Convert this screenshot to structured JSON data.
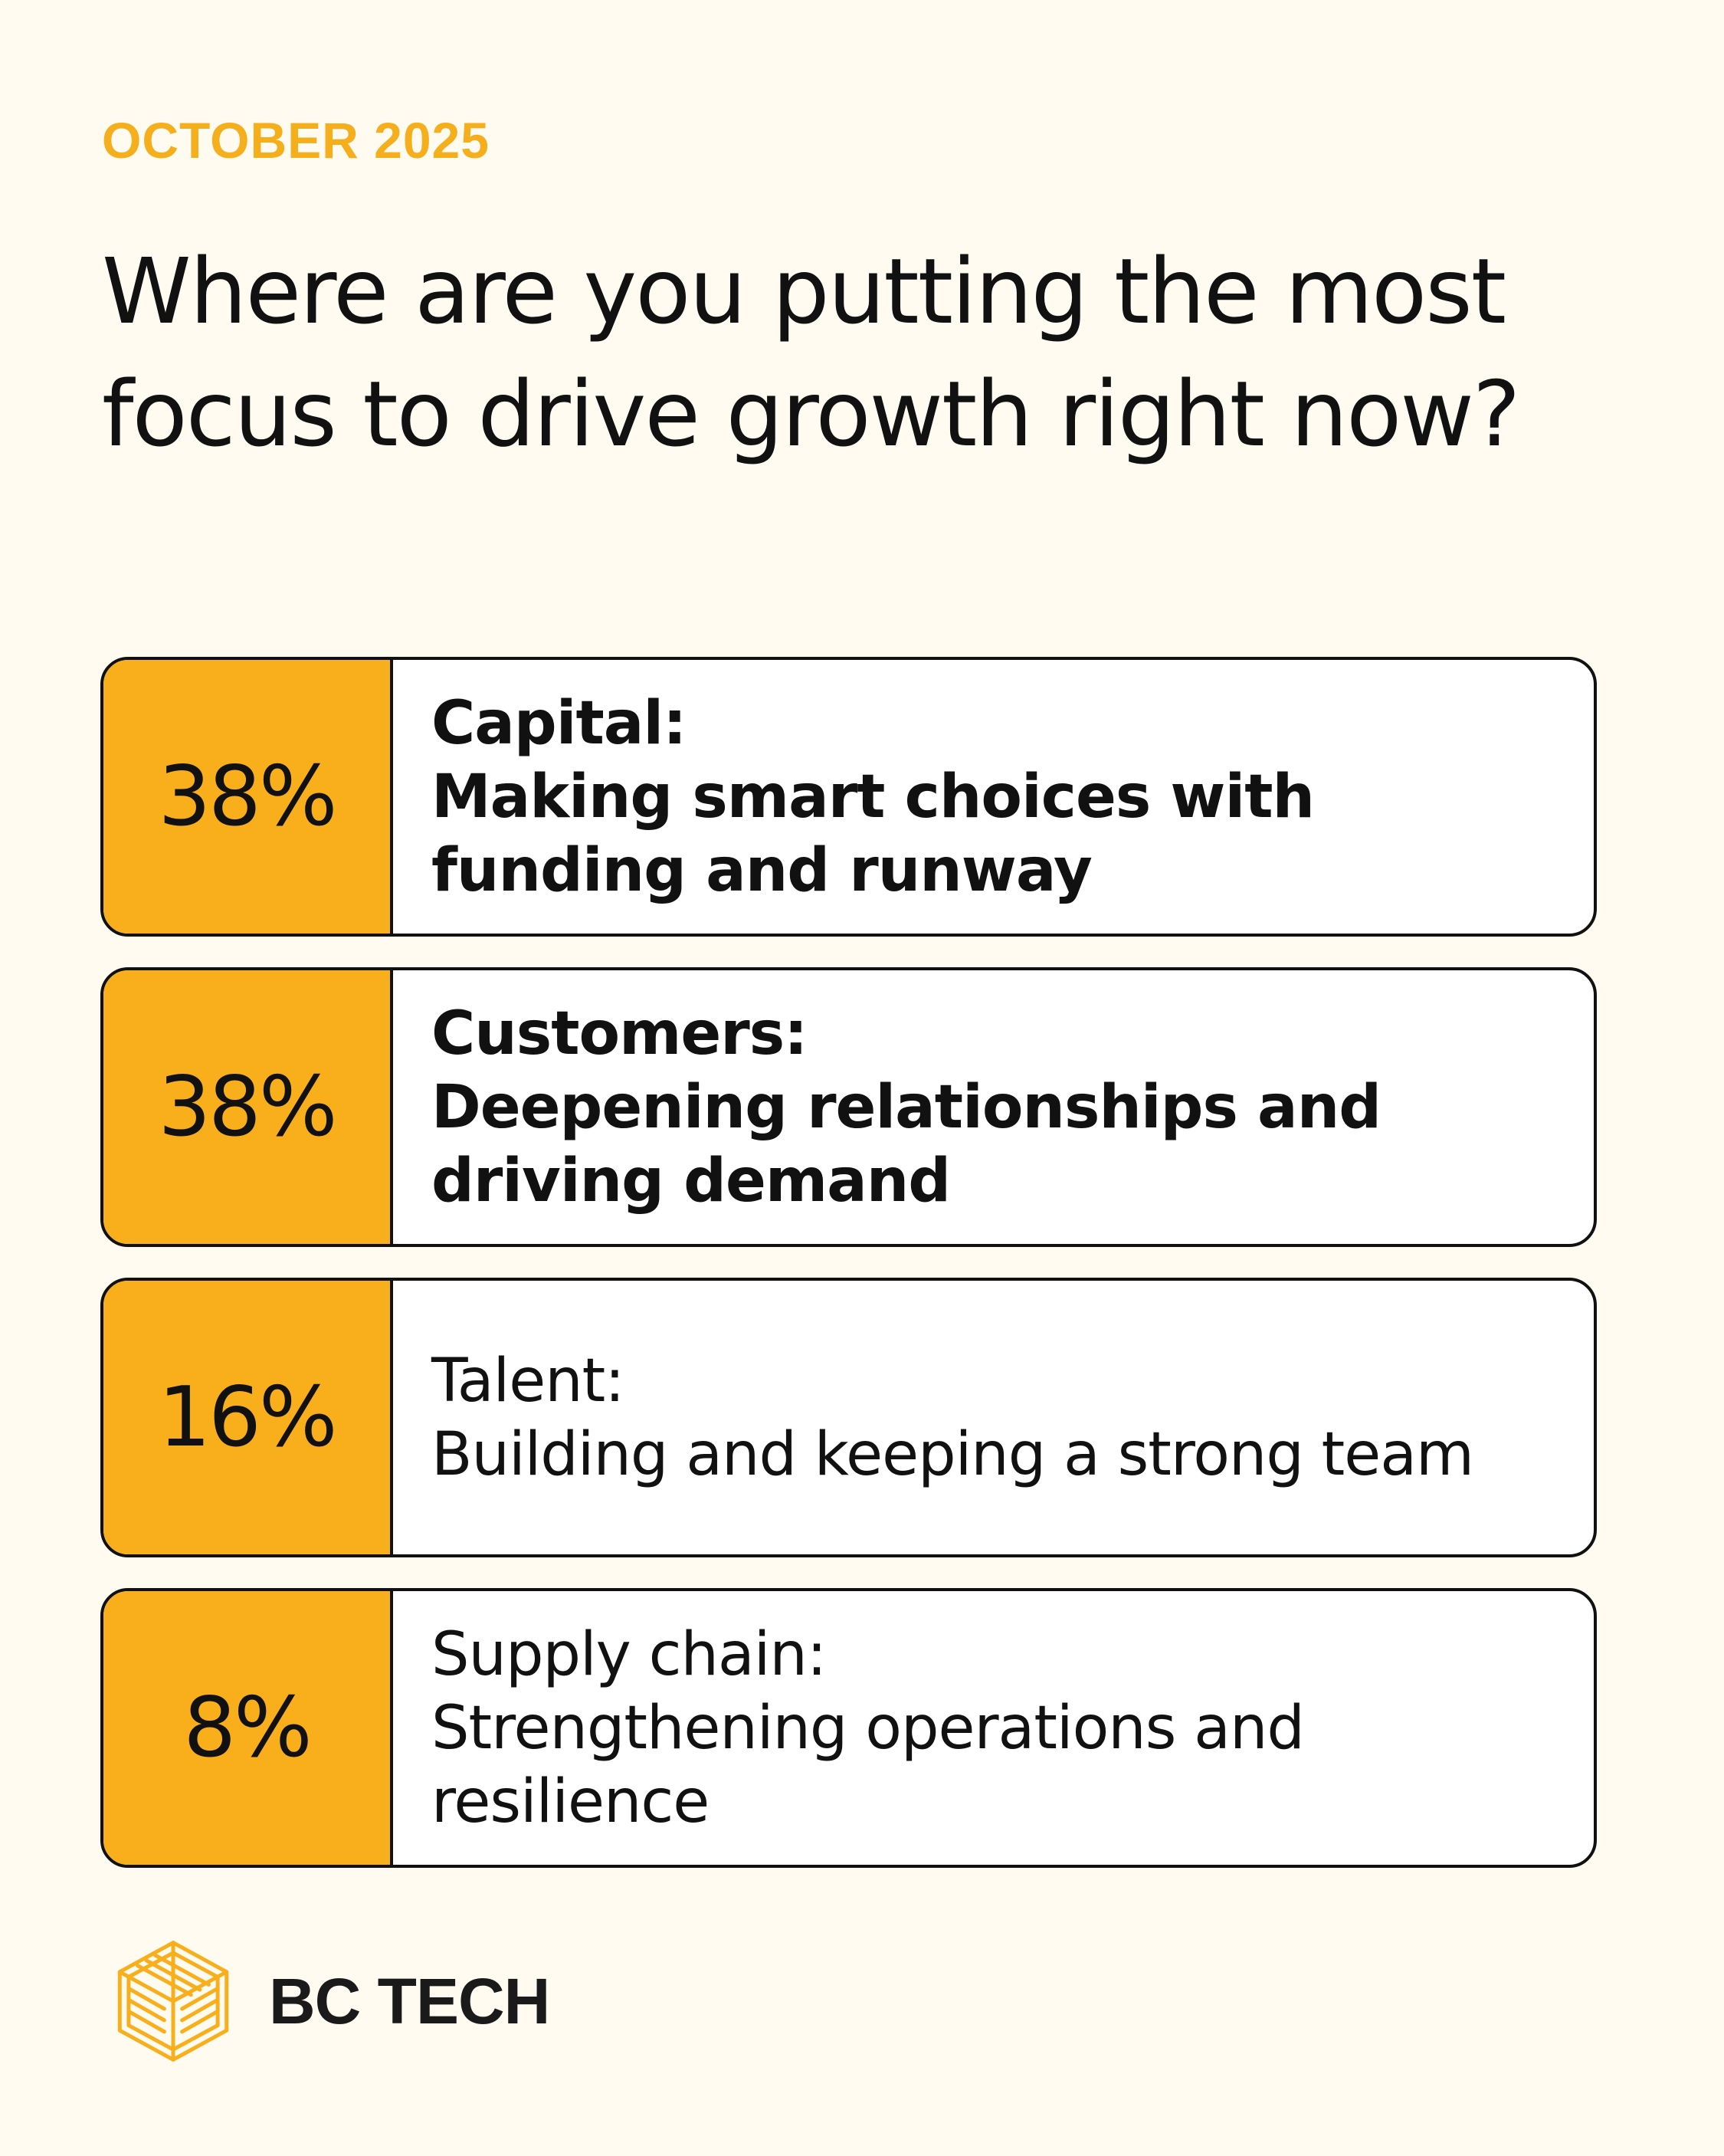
{
  "header": {
    "month": "OCTOBER 2025",
    "question": "Where are you putting the most focus to drive growth right now?"
  },
  "colors": {
    "accent": "#F9AF1B",
    "background": "#FFFBF0",
    "text": "#111111"
  },
  "chart_data": {
    "type": "table",
    "title": "Where are you putting the most focus to drive growth right now?",
    "rows": [
      {
        "value": 38,
        "value_label": "38%",
        "category": "Capital:",
        "description": "Making smart choices with funding and runway",
        "emphasis": "bold"
      },
      {
        "value": 38,
        "value_label": "38%",
        "category": "Customers:",
        "description": "Deepening relationships and driving demand",
        "emphasis": "bold"
      },
      {
        "value": 16,
        "value_label": "16%",
        "category": "Talent:",
        "description": "Building and keeping a strong team",
        "emphasis": "regular"
      },
      {
        "value": 8,
        "value_label": "8%",
        "category": "Supply chain:",
        "description": "Strengthening operations and resilience",
        "emphasis": "regular"
      }
    ]
  },
  "brand": {
    "name": "BC TECH",
    "logo_icon": "bc-tech-logo-icon"
  }
}
